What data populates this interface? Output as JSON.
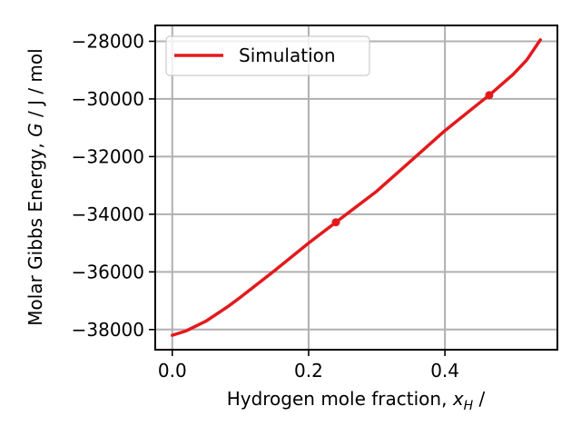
{
  "chart_data": {
    "type": "line",
    "xlabel": "Hydrogen mole fraction, ",
    "xlabel_symbol": "x",
    "xlabel_sub": "H",
    "xlabel_suffix": " /",
    "ylabel": "Molar Gibbs Energy, ",
    "ylabel_symbol": "G",
    "ylabel_suffix": " / J / mol",
    "xlim": [
      -0.025,
      0.565
    ],
    "ylim": [
      -38700,
      -27450
    ],
    "xticks": [
      0.0,
      0.2,
      0.4
    ],
    "xtick_labels": [
      "0.0",
      "0.2",
      "0.4"
    ],
    "yticks": [
      -38000,
      -36000,
      -34000,
      -32000,
      -30000,
      -28000
    ],
    "ytick_labels": [
      "−38000",
      "−36000",
      "−34000",
      "−32000",
      "−30000",
      "−28000"
    ],
    "grid": true,
    "legend_position": "upper-left",
    "colors": {
      "series": "#e31a1c",
      "grid": "#b0b0b0"
    },
    "series": [
      {
        "name": "Simulation",
        "x": [
          0.0,
          0.02,
          0.05,
          0.08,
          0.1,
          0.15,
          0.2,
          0.24,
          0.3,
          0.35,
          0.4,
          0.45,
          0.465,
          0.5,
          0.52,
          0.54
        ],
        "y": [
          -38200,
          -38050,
          -37700,
          -37230,
          -36880,
          -35960,
          -35000,
          -34280,
          -33200,
          -32150,
          -31100,
          -30150,
          -29870,
          -29150,
          -28650,
          -27950
        ]
      }
    ],
    "markers": [
      {
        "x": 0.24,
        "y": -34280
      },
      {
        "x": 0.465,
        "y": -29870
      }
    ]
  }
}
